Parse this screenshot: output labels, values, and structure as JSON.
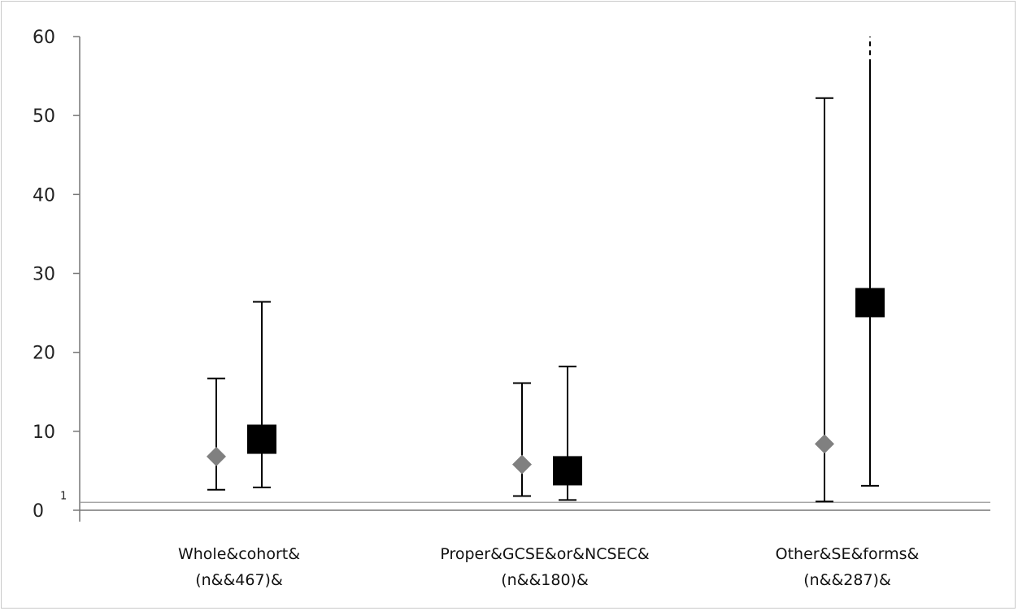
{
  "chart_data": {
    "type": "scatter",
    "title": "",
    "xlabel": "",
    "ylabel": "",
    "ylim": [
      0,
      60
    ],
    "y_ticks": [
      "0",
      "10",
      "20",
      "30",
      "40",
      "50",
      "60"
    ],
    "reference_line": {
      "value": 1,
      "label": "1"
    },
    "grid": false,
    "legend": "none",
    "categories": [
      {
        "line1": "Whole&cohort&",
        "line2": "(n&&467)&"
      },
      {
        "line1": "Proper&GCSE&or&NCSEC&",
        "line2": "(n&&180)&"
      },
      {
        "line1": "Other&SE&forms&",
        "line2": "(n&&287)&"
      }
    ],
    "series": [
      {
        "marker": "diamond",
        "color": "#808080",
        "points": [
          {
            "value": 6.8,
            "low": 2.6,
            "high": 16.7
          },
          {
            "value": 5.8,
            "low": 1.8,
            "high": 16.1
          },
          {
            "value": 8.4,
            "low": 1.1,
            "high": 52.2
          }
        ]
      },
      {
        "marker": "square",
        "color": "#000000",
        "points": [
          {
            "value": 9.0,
            "low": 2.9,
            "high": 26.4
          },
          {
            "value": 5.0,
            "low": 1.3,
            "high": 18.2
          },
          {
            "value": 26.3,
            "low": 3.1,
            "high": 60,
            "high_truncated": true
          }
        ]
      }
    ]
  }
}
